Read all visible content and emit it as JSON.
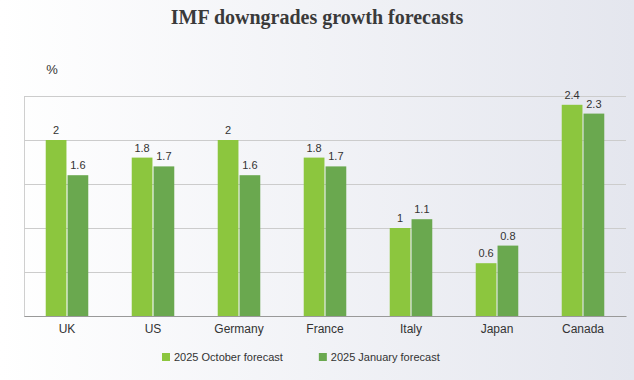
{
  "chart_data": {
    "type": "bar",
    "title": "IMF downgrades growth forecasts",
    "y_label": "%",
    "categories": [
      "UK",
      "US",
      "Germany",
      "France",
      "Italy",
      "Japan",
      "Canada"
    ],
    "series": [
      {
        "name": "2025 October forecast",
        "color": "#8cc63e",
        "values": [
          2,
          1.8,
          2,
          1.8,
          1,
          0.6,
          2.4
        ]
      },
      {
        "name": "2025 January forecast",
        "color": "#6aa84f",
        "values": [
          1.6,
          1.7,
          1.6,
          1.7,
          1.1,
          0.8,
          2.3
        ]
      }
    ],
    "ylim": [
      0,
      2.5
    ],
    "yticks": [
      0,
      0.5,
      1,
      1.5,
      2,
      2.5
    ],
    "grid": true,
    "legend": "bottom",
    "data_labels": true,
    "tick_labels": "x"
  }
}
